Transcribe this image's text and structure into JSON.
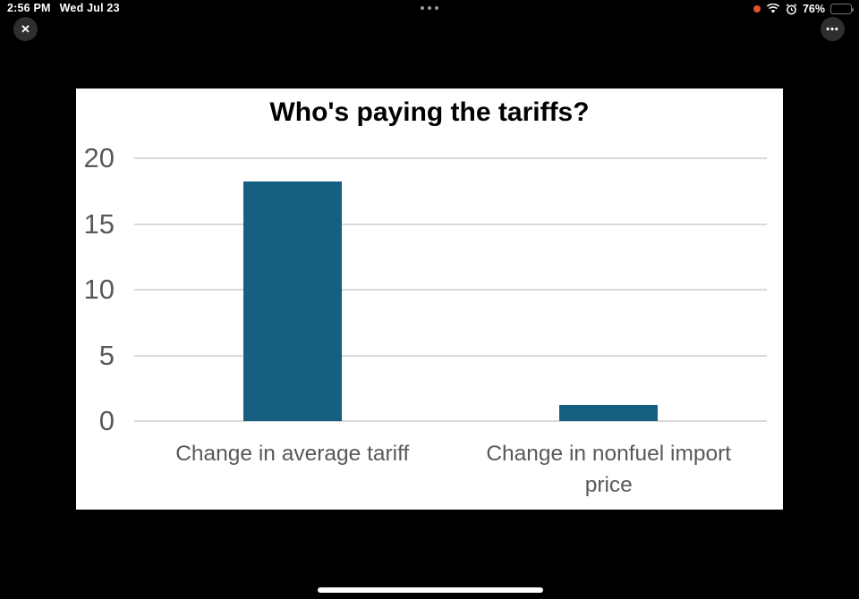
{
  "status_bar": {
    "time": "2:56 PM",
    "date": "Wed Jul 23",
    "battery_percent": "76%",
    "recording_dot_color": "#e8502b",
    "icons": [
      "recording-dot",
      "wifi-icon",
      "alarm-icon",
      "battery-icon"
    ]
  },
  "viewer": {
    "close_glyph": "✕",
    "more_glyph": "•••"
  },
  "chart_data": {
    "type": "bar",
    "title": "Who's paying the tariffs?",
    "categories": [
      "Change in average tariff",
      "Change in nonfuel import price"
    ],
    "values": [
      18.2,
      1.2
    ],
    "xlabel": "",
    "ylabel": "",
    "ylim": [
      0,
      20
    ],
    "yticks": [
      0,
      5,
      10,
      15,
      20
    ],
    "grid": true,
    "legend": false,
    "bar_color": "#156082",
    "gridline_color": "#d9d9d9",
    "text_color": "#595959",
    "background": "#ffffff"
  }
}
